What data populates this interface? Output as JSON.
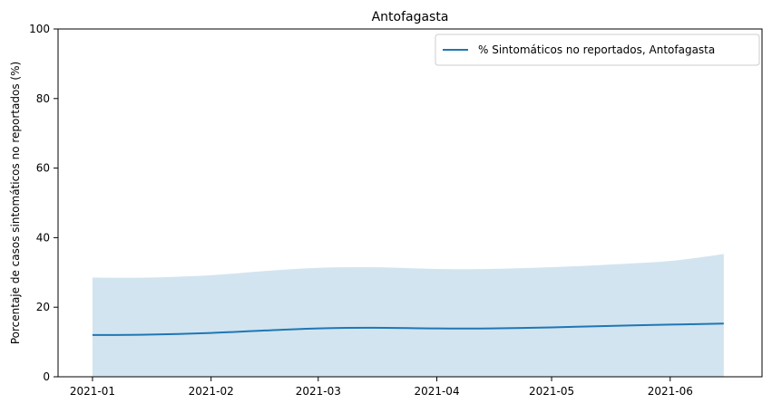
{
  "chart_data": {
    "type": "line",
    "title": "Antofagasta",
    "xlabel": "",
    "ylabel": "Porcentaje de casos sintomáticos no reportados (%)",
    "ylim": [
      0,
      100
    ],
    "xlim": [
      "2020-12-23",
      "2021-06-25"
    ],
    "yticks": [
      0,
      20,
      40,
      60,
      80,
      100
    ],
    "xticks": [
      "2021-01-01",
      "2021-02-01",
      "2021-03-01",
      "2021-04-01",
      "2021-05-01",
      "2021-06-01"
    ],
    "xtick_labels": [
      "2021-01",
      "2021-02",
      "2021-03",
      "2021-04",
      "2021-05",
      "2021-06"
    ],
    "grid": false,
    "legend": {
      "position": "top-right",
      "entries": [
        "% Sintomáticos no reportados, Antofagasta"
      ]
    },
    "series": [
      {
        "name": "% Sintomáticos no reportados, Antofagasta",
        "color": "#1f77b4",
        "band_color": "#1f77b4",
        "band_lower": 0,
        "x": [
          "2021-01-01",
          "2021-01-15",
          "2021-02-01",
          "2021-02-15",
          "2021-03-01",
          "2021-03-15",
          "2021-04-01",
          "2021-04-15",
          "2021-05-01",
          "2021-05-15",
          "2021-06-01",
          "2021-06-15"
        ],
        "values": [
          12.0,
          12.1,
          12.6,
          13.3,
          13.9,
          14.1,
          13.9,
          13.9,
          14.2,
          14.6,
          15.0,
          15.3
        ],
        "upper": [
          28.5,
          28.5,
          29.2,
          30.4,
          31.3,
          31.5,
          31.0,
          31.0,
          31.5,
          32.2,
          33.3,
          35.3
        ]
      }
    ]
  }
}
